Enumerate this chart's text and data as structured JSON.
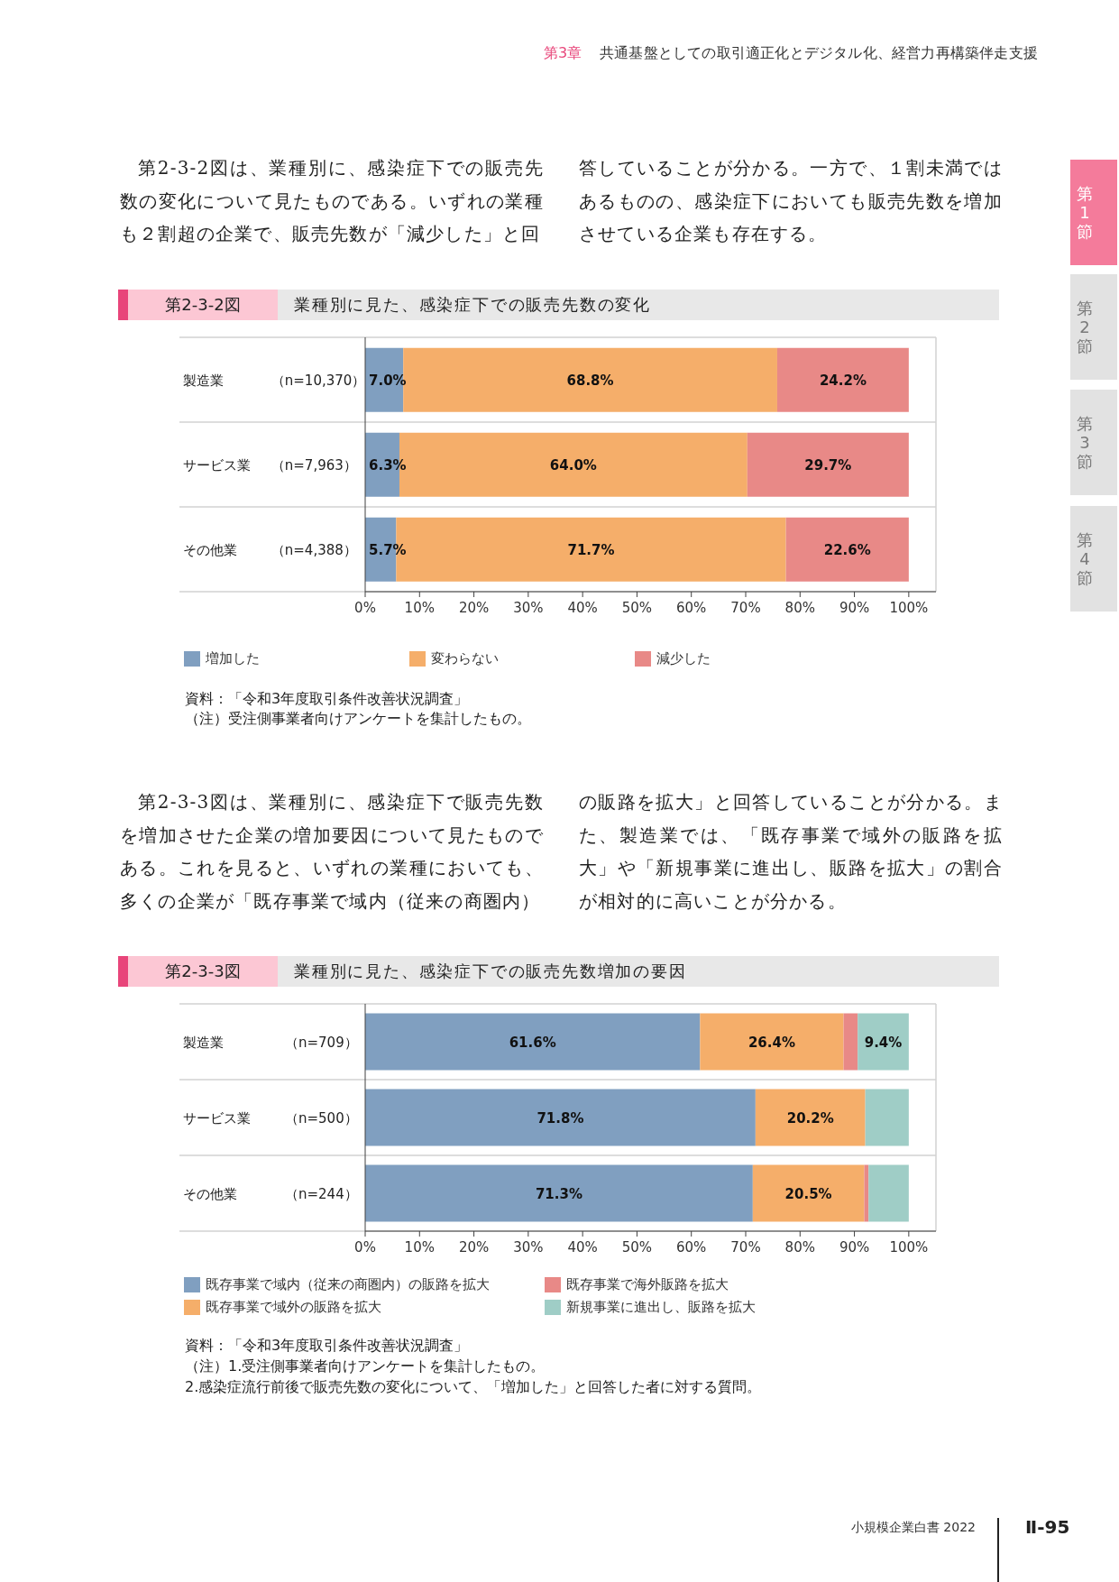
{
  "chart_data": [
    {
      "type": "bar",
      "orientation": "horizontal",
      "stacked": true,
      "title": "第2-3-2図 業種別に見た、感染症下での販売先数の変化",
      "categories": [
        "製造業 （n=10,370）",
        "サービス業 （n=7,963）",
        "その他業 （n=4,388）"
      ],
      "series": [
        {
          "name": "増加した",
          "color": "#809fc0",
          "values": [
            7.0,
            6.3,
            5.7
          ],
          "value_labels": [
            "7.0%",
            "6.3%",
            "5.7%"
          ]
        },
        {
          "name": "変わらない",
          "color": "#f5ae6a",
          "values": [
            68.8,
            64.0,
            71.7
          ],
          "value_labels": [
            "68.8%",
            "64.0%",
            "71.7%"
          ]
        },
        {
          "name": "減少した",
          "color": "#e88987",
          "values": [
            24.2,
            29.7,
            22.6
          ],
          "value_labels": [
            "24.2%",
            "29.7%",
            "22.6%"
          ]
        }
      ],
      "xlim": [
        0,
        105
      ],
      "xticks": [
        {
          "value": 0,
          "label": "0%"
        },
        {
          "value": 10,
          "label": "10%"
        },
        {
          "value": 20,
          "label": "20%"
        },
        {
          "value": 30,
          "label": "30%"
        },
        {
          "value": 40,
          "label": "40%"
        },
        {
          "value": 50,
          "label": "50%"
        },
        {
          "value": 60,
          "label": "60%"
        },
        {
          "value": 70,
          "label": "70%"
        },
        {
          "value": 80,
          "label": "80%"
        },
        {
          "value": 90,
          "label": "90%"
        },
        {
          "value": 100,
          "label": "100%"
        }
      ],
      "grid": "y",
      "legend": "bottom",
      "annotations": [
        "第3章",
        "共通基盤としての取引適正化とデジタル化、経営力再構築伴走支援",
        "第1節",
        "第2節",
        "第3節",
        "第4節",
        "第2-3-2図は、業種別に、感染症下での販売先数の変化について見たものである。いずれの業種も２割超の企業で、販売先数が「減少した」と回",
        "答していることが分かる。一方で、１割未満ではあるものの、感染症下においても販売先数を増加させている企業も存在する。",
        "資料：「令和3年度取引条件改善状況調査」",
        "（注）受注側事業者向けアンケートを集計したもの。"
      ]
    },
    {
      "type": "bar",
      "orientation": "horizontal",
      "stacked": true,
      "title": "第2-3-3図 業種別に見た、感染症下での販売先数増加の要因",
      "categories": [
        "製造業 （n=709）",
        "サービス業 （n=500）",
        "その他業 （n=244）"
      ],
      "series": [
        {
          "name": "既存事業で域内（従来の商圏内）の販路を拡大",
          "color": "#809fc0",
          "values": [
            61.6,
            71.8,
            71.3
          ],
          "value_labels": [
            "61.6%",
            "71.8%",
            "71.3%"
          ]
        },
        {
          "name": "既存事業で域外の販路を拡大",
          "color": "#f5ae6a",
          "values": [
            26.4,
            20.2,
            20.5
          ],
          "value_labels": [
            "26.4%",
            "20.2%",
            "20.5%"
          ]
        },
        {
          "name": "既存事業で海外販路を拡大",
          "color": "#e88987",
          "values": [
            2.6,
            0,
            0.8
          ]
        },
        {
          "name": "新規事業に進出し、販路を拡大",
          "color": "#9fcdc6",
          "values": [
            9.4,
            8.0,
            7.4
          ],
          "value_labels": [
            "9.4%",
            null,
            null
          ]
        }
      ],
      "xlim": [
        0,
        105
      ],
      "xticks": [
        {
          "value": 0,
          "label": "0%"
        },
        {
          "value": 10,
          "label": "10%"
        },
        {
          "value": 20,
          "label": "20%"
        },
        {
          "value": 30,
          "label": "30%"
        },
        {
          "value": 40,
          "label": "40%"
        },
        {
          "value": 50,
          "label": "50%"
        },
        {
          "value": 60,
          "label": "60%"
        },
        {
          "value": 70,
          "label": "70%"
        },
        {
          "value": 80,
          "label": "80%"
        },
        {
          "value": 90,
          "label": "90%"
        },
        {
          "value": 100,
          "label": "100%"
        }
      ],
      "grid": "y",
      "legend": "bottom",
      "annotations": [
        "第2-3-3図は、業種別に、感染症下で販売先数を増加させた企業の増加要因について見たものである。これを見ると、いずれの業種においても、多くの企業が「既存事業で域内（従来の商圏内）",
        "の販路を拡大」と回答していることが分かる。また、製造業では、「既存事業で域外の販路を拡大」や「新規事業に進出し、販路を拡大」の割合が相対的に高いことが分かる。",
        "資料：「令和3年度取引条件改善状況調査」",
        "（注）1.受注側事業者向けアンケートを集計したもの。",
        "2.感染症流行前後で販売先数の変化について、「増加した」と回答した者に対する質問。",
        "小規模企業白書 2022",
        "Ⅱ-95"
      ]
    }
  ]
}
